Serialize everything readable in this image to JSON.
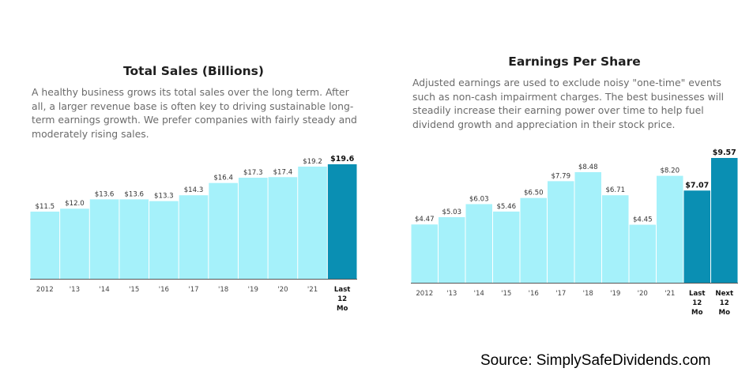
{
  "colors": {
    "bar": "#a5f1fa",
    "highlight": "#0a8fb3",
    "axis": "#555555"
  },
  "source": "Source: SimplySafeDividends.com",
  "chart_data": [
    {
      "type": "bar",
      "title": "Total Sales (Billions)",
      "description": "A healthy business grows its total sales over the long term. After all, a larger revenue base is often key to driving sustainable long-term earnings growth. We prefer companies with fairly steady and moderately rising sales.",
      "categories": [
        "2012",
        "'13",
        "'14",
        "'15",
        "'16",
        "'17",
        "'18",
        "'19",
        "'20",
        "'21",
        "Last 12 Mo"
      ],
      "values": [
        11.5,
        12.0,
        13.6,
        13.6,
        13.3,
        14.3,
        16.4,
        17.3,
        17.4,
        19.2,
        19.6
      ],
      "value_labels": [
        "$11.5",
        "$12.0",
        "$13.6",
        "$13.6",
        "$13.3",
        "$14.3",
        "$16.4",
        "$17.3",
        "$17.4",
        "$19.2",
        "$19.6"
      ],
      "highlighted": [
        10
      ]
    },
    {
      "type": "bar",
      "title": "Earnings Per Share",
      "description": "Adjusted earnings are used to exclude noisy \"one-time\" events such as non-cash impairment charges. The best businesses will steadily increase their earning power over time to help fuel dividend growth and appreciation in their stock price.",
      "categories": [
        "2012",
        "'13",
        "'14",
        "'15",
        "'16",
        "'17",
        "'18",
        "'19",
        "'20",
        "'21",
        "Last 12 Mo",
        "Next 12 Mo"
      ],
      "values": [
        4.47,
        5.03,
        6.03,
        5.46,
        6.5,
        7.79,
        8.48,
        6.71,
        4.45,
        8.2,
        7.07,
        9.57
      ],
      "value_labels": [
        "$4.47",
        "$5.03",
        "$6.03",
        "$5.46",
        "$6.50",
        "$7.79",
        "$8.48",
        "$6.71",
        "$4.45",
        "$8.20",
        "$7.07",
        "$9.57"
      ],
      "highlighted": [
        10,
        11
      ]
    }
  ]
}
